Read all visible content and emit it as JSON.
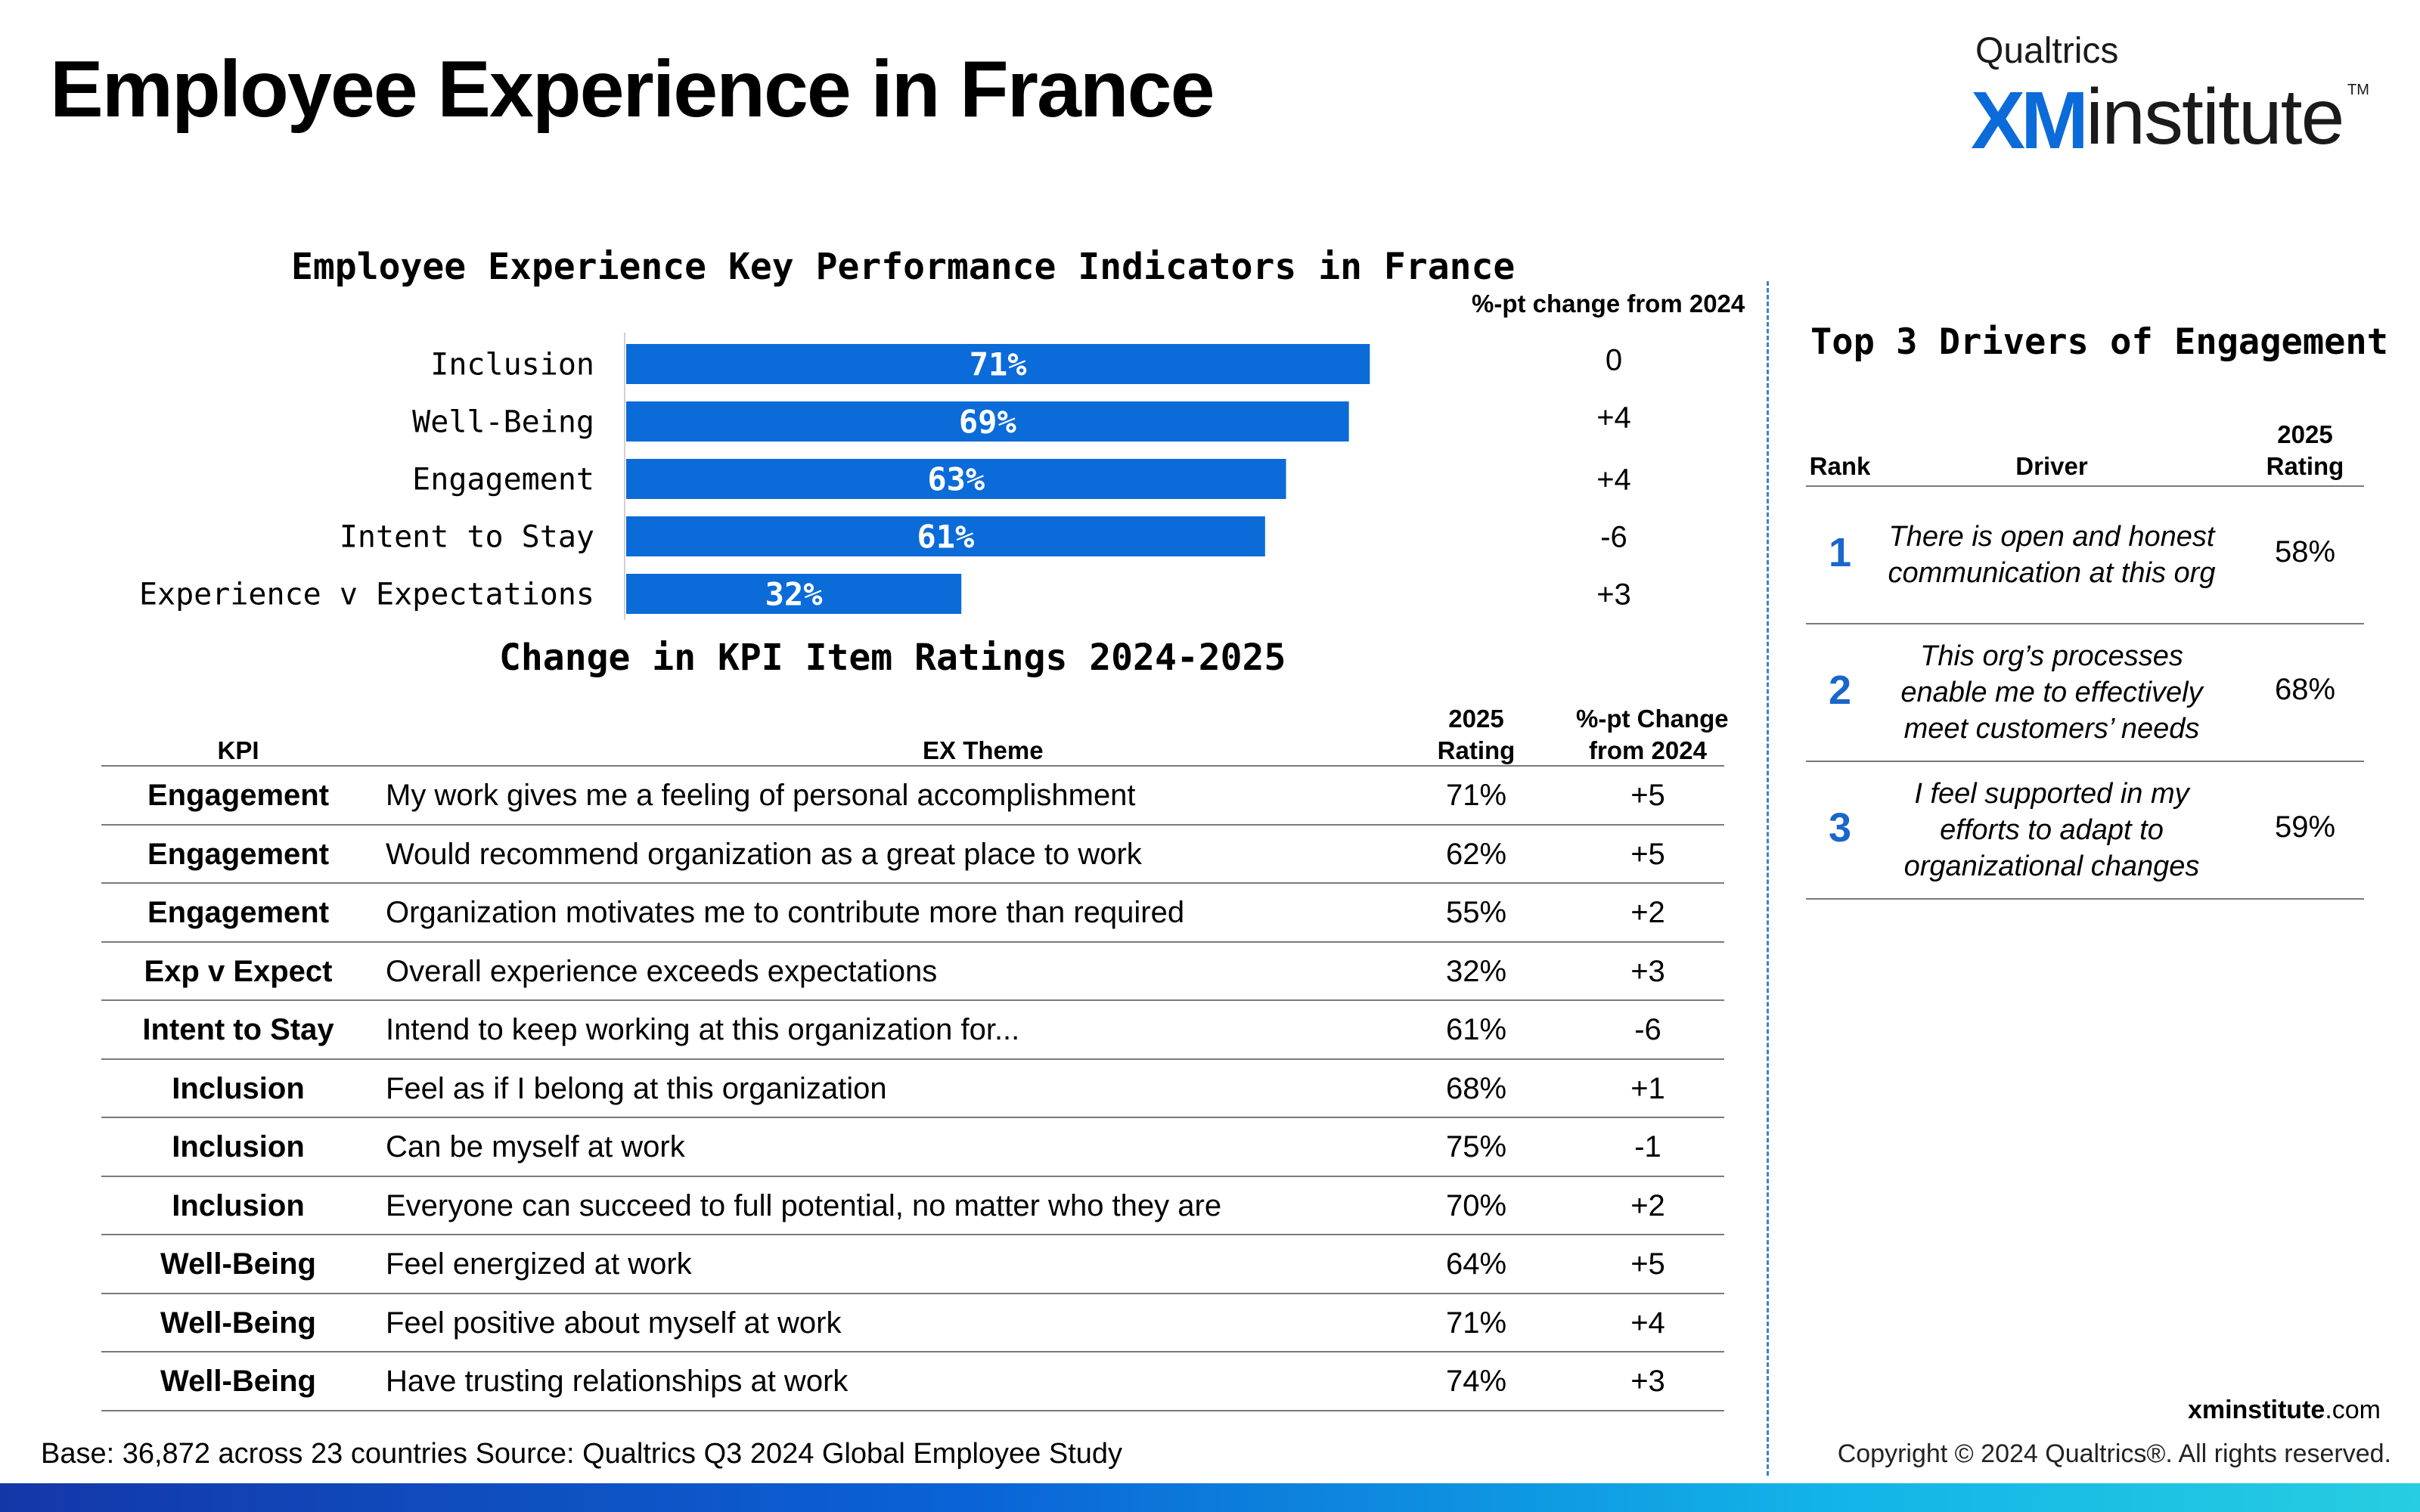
{
  "title": "Employee Experience in France",
  "logo": {
    "top": "Qualtrics",
    "xm": "XM",
    "institute": "institute",
    "tm": "TM"
  },
  "colors": {
    "bar": "#0b6bd8",
    "rank": "#1a66c9",
    "divider": "#3b7fd4"
  },
  "kpi_chart": {
    "title": "Employee Experience Key Performance Indicators in France",
    "change_header": "%-pt change from 2024"
  },
  "chart_data": {
    "type": "bar",
    "orientation": "horizontal",
    "title": "Employee Experience Key Performance Indicators in France",
    "categories": [
      "Inclusion",
      "Well-Being",
      "Engagement",
      "Intent to Stay",
      "Experience v Expectations"
    ],
    "values": [
      71,
      69,
      63,
      61,
      32
    ],
    "value_labels": [
      "71%",
      "69%",
      "63%",
      "61%",
      "32%"
    ],
    "change_labels": [
      "0",
      "+4",
      "+4",
      "-6",
      "+3"
    ],
    "xlim": [
      0,
      100
    ],
    "grid": false,
    "legend": "none"
  },
  "ratings_table": {
    "title": "Change in KPI Item Ratings 2024-2025",
    "headers": {
      "kpi": "KPI",
      "theme": "EX Theme",
      "rating_1": "2025",
      "rating_2": "Rating",
      "change_1": "%-pt Change",
      "change_2": "from 2024"
    },
    "rows": [
      {
        "kpi": "Engagement",
        "theme": "My work gives me a feeling of personal accomplishment",
        "rating": "71%",
        "change": "+5"
      },
      {
        "kpi": "Engagement",
        "theme": "Would recommend organization as a great place to work",
        "rating": "62%",
        "change": "+5"
      },
      {
        "kpi": "Engagement",
        "theme": "Organization motivates me to contribute more than required",
        "rating": "55%",
        "change": "+2"
      },
      {
        "kpi": "Exp v Expect",
        "theme": "Overall experience exceeds expectations",
        "rating": "32%",
        "change": "+3"
      },
      {
        "kpi": "Intent to Stay",
        "theme": "Intend to keep working at this organization for...",
        "rating": "61%",
        "change": "-6"
      },
      {
        "kpi": "Inclusion",
        "theme": "Feel as if I belong at this organization",
        "rating": "68%",
        "change": "+1"
      },
      {
        "kpi": "Inclusion",
        "theme": "Can be myself at work",
        "rating": "75%",
        "change": "-1"
      },
      {
        "kpi": "Inclusion",
        "theme": "Everyone can succeed to full potential, no matter who they are",
        "rating": "70%",
        "change": "+2"
      },
      {
        "kpi": "Well-Being",
        "theme": "Feel energized at work",
        "rating": "64%",
        "change": "+5"
      },
      {
        "kpi": "Well-Being",
        "theme": "Feel positive about myself at work",
        "rating": "71%",
        "change": "+4"
      },
      {
        "kpi": "Well-Being",
        "theme": "Have trusting relationships at work",
        "rating": "74%",
        "change": "+3"
      }
    ]
  },
  "drivers": {
    "title": "Top 3 Drivers of Engagement",
    "headers": {
      "rank": "Rank",
      "driver": "Driver",
      "rating_1": "2025",
      "rating_2": "Rating"
    },
    "rows": [
      {
        "rank": "1",
        "lines": [
          "There is open and honest",
          "communication at this org"
        ],
        "rating": "58%"
      },
      {
        "rank": "2",
        "lines": [
          "This org’s processes",
          "enable me to effectively",
          "meet customers’ needs"
        ],
        "rating": "68%"
      },
      {
        "rank": "3",
        "lines": [
          "I feel supported in my",
          "efforts to adapt to",
          "organizational changes"
        ],
        "rating": "59%"
      }
    ]
  },
  "footer": {
    "base_label": "Base:",
    "base_value": " 36,872 across 23 countries ",
    "source_label": "Source:",
    "source_value": " Qualtrics Q3 2024 Global Employee Study",
    "site_bold": "xminstitute",
    "site_rest": ".com",
    "copyright": "Copyright © 2024 Qualtrics®. All rights reserved."
  }
}
